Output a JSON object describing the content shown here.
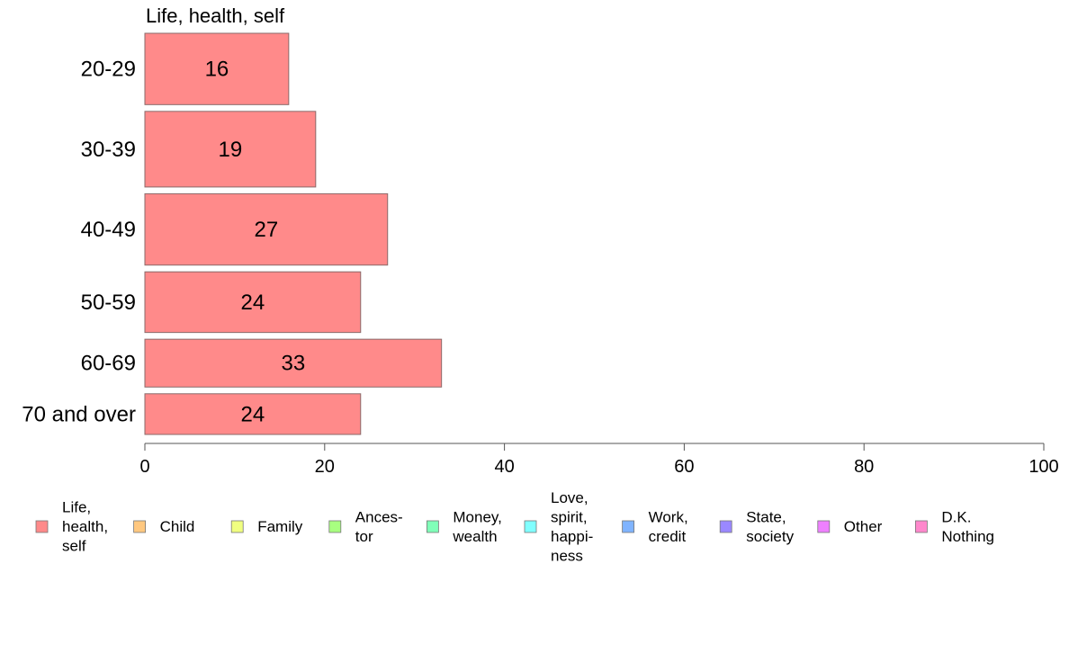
{
  "chart_data": {
    "type": "bar",
    "orientation": "horizontal",
    "panel_title": "Life, health, self",
    "categories": [
      "20-29",
      "30-39",
      "40-49",
      "50-59",
      "60-69",
      "70 and over"
    ],
    "category_weights": [
      1.0,
      1.06,
      1.0,
      0.85,
      0.67,
      0.57
    ],
    "series": [
      {
        "name": "Life, health, self",
        "values": [
          16,
          19,
          27,
          24,
          33,
          24
        ]
      }
    ],
    "data_labels": [
      "16",
      "19",
      "27",
      "24",
      "33",
      "24"
    ],
    "xlim": [
      0,
      100
    ],
    "xticks": [
      0,
      20,
      40,
      60,
      80,
      100
    ],
    "xtick_labels": [
      "0",
      "20",
      "40",
      "60",
      "80",
      "100"
    ],
    "grid": false,
    "legend": {
      "position": "bottom",
      "entries": [
        {
          "label_lines": [
            "Life,",
            "health,",
            "self"
          ],
          "color": "#ff8a8a"
        },
        {
          "label_lines": [
            "Child"
          ],
          "color": "#ffc880"
        },
        {
          "label_lines": [
            "Family"
          ],
          "color": "#f0ff80"
        },
        {
          "label_lines": [
            "Ances-",
            "tor"
          ],
          "color": "#a8ff80"
        },
        {
          "label_lines": [
            "Money,",
            "wealth"
          ],
          "color": "#80ffb8"
        },
        {
          "label_lines": [
            "Love,",
            "spirit,",
            "happi-",
            "ness"
          ],
          "color": "#80ffff"
        },
        {
          "label_lines": [
            "Work,",
            "credit"
          ],
          "color": "#80b4ff"
        },
        {
          "label_lines": [
            "State,",
            "society"
          ],
          "color": "#9a88ff"
        },
        {
          "label_lines": [
            "Other"
          ],
          "color": "#ee80ff"
        },
        {
          "label_lines": [
            "D.K.",
            "Nothing"
          ],
          "color": "#ff88cc"
        }
      ]
    }
  }
}
